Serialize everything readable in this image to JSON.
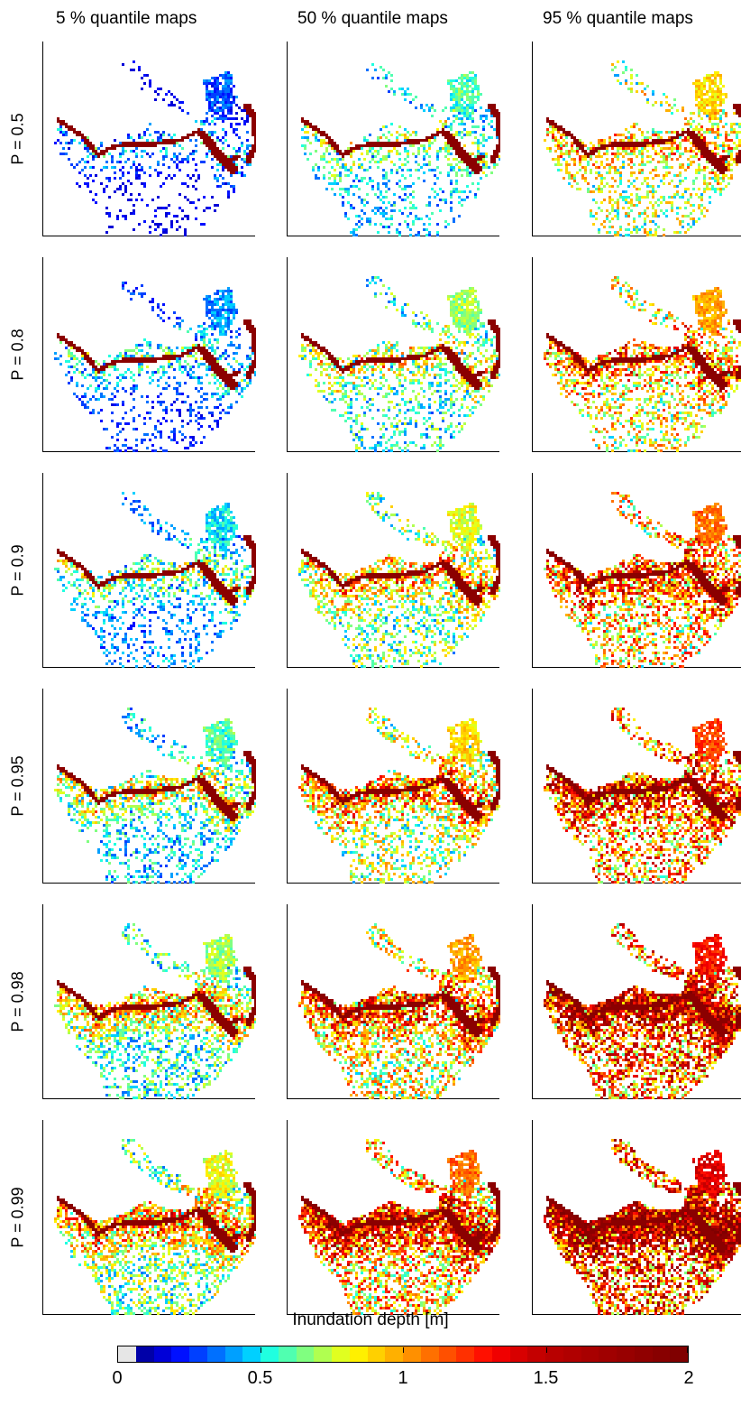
{
  "column_titles": [
    "5 % quantile maps",
    "50 % quantile maps",
    "95 % quantile maps"
  ],
  "row_labels": [
    "P = 0.5",
    "P = 0.8",
    "P = 0.9",
    "P = 0.95",
    "P = 0.98",
    "P = 0.99"
  ],
  "legend": {
    "title": "Inundation depth [m]",
    "min": 0,
    "max": 2,
    "tick_labels": [
      "0",
      "0.5",
      "1",
      "1.5",
      "2"
    ],
    "tick_values": [
      0,
      0.5,
      1,
      1.5,
      2
    ]
  },
  "colors": {
    "river": "#8b0000",
    "colormap": [
      "#e6e6e6",
      "#0000a8",
      "#0000d8",
      "#0010ff",
      "#0040ff",
      "#0070ff",
      "#00a0ff",
      "#00d0ff",
      "#20ffe0",
      "#50ffb0",
      "#80ff80",
      "#b0ff50",
      "#e0ff20",
      "#fff000",
      "#ffd000",
      "#ffb000",
      "#ff9000",
      "#ff7000",
      "#ff5000",
      "#ff3000",
      "#ff1000",
      "#f00000",
      "#d80000",
      "#c40000",
      "#b80000",
      "#b00000",
      "#a80000",
      "#a00000",
      "#980000",
      "#900000",
      "#880000",
      "#800000"
    ]
  }
}
